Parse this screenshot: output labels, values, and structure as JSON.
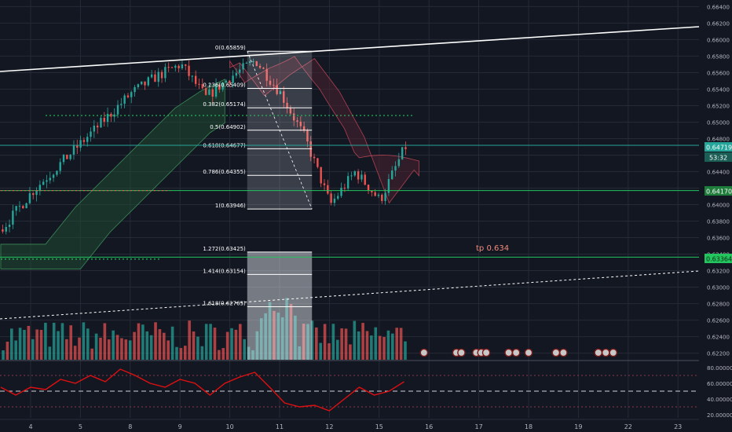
{
  "colors": {
    "background": "#131722",
    "grid": "#242a36",
    "axis_text": "#b2b5be",
    "up": "#26a69a",
    "down": "#ef5350",
    "trendline": "#ffffff",
    "green_line": "#22c55e",
    "fib_box": "#f0f3fa",
    "cloud_up": "#1f4a33",
    "cloud_down": "#4a2030",
    "rsi_line": "#e01010"
  },
  "price_tags": {
    "current": "0.64719",
    "countdown": "53:32",
    "support": "0.64170",
    "target": "0.63364"
  },
  "annotation": {
    "tp_label": "tp 0.634"
  },
  "chart_data": [
    {
      "type": "line",
      "panel": "price",
      "y_ticks": [
        "0.66400",
        "0.66200",
        "0.66000",
        "0.65800",
        "0.65600",
        "0.65400",
        "0.65200",
        "0.65000",
        "0.64800",
        "0.64600",
        "0.64400",
        "0.64200",
        "0.64000",
        "0.63800",
        "0.63600",
        "0.63400",
        "0.63200",
        "0.63000",
        "0.62800",
        "0.62600",
        "0.62400",
        "0.62200"
      ],
      "ylim": [
        0.6212,
        0.6648
      ],
      "x_ticks": [
        "4",
        "5",
        "8",
        "9",
        "10",
        "11",
        "12",
        "15",
        "16",
        "17",
        "18",
        "19",
        "22",
        "23"
      ],
      "x_tick_days": [
        0,
        1,
        2,
        3,
        4,
        5,
        6,
        7,
        8,
        9,
        10,
        11,
        12,
        13
      ],
      "xlim": [
        -0.6,
        13.6
      ],
      "series": [
        {
          "values_x": [
            -0.6,
            0.0,
            0.5,
            1.0,
            1.5,
            2.0,
            2.5,
            3.0,
            3.5,
            4.0,
            4.5,
            5.0,
            5.5,
            6.0,
            6.5,
            7.0,
            7.5
          ],
          "values_y": [
            0.637,
            0.6415,
            0.6445,
            0.6475,
            0.6505,
            0.6535,
            0.6555,
            0.657,
            0.653,
            0.6555,
            0.6575,
            0.6535,
            0.648,
            0.64,
            0.644,
            0.6405,
            0.647
          ]
        }
      ],
      "fib_levels": [
        {
          "label": "0(0.65859)",
          "value": 0.65859
        },
        {
          "label": "0.236(0.65409)",
          "value": 0.65409
        },
        {
          "label": "0.382(0.65174)",
          "value": 0.65174
        },
        {
          "label": "0.5(0.64902)",
          "value": 0.64902
        },
        {
          "label": "0.618(0.64677)",
          "value": 0.64677
        },
        {
          "label": "0.786(0.64355)",
          "value": 0.64355
        },
        {
          "label": "1(0.63946)",
          "value": 0.63946
        },
        {
          "label": "1.272(0.63425)",
          "value": 0.63425
        },
        {
          "label": "1.414(0.63154)",
          "value": 0.63154
        },
        {
          "label": "1.618(0.62763)",
          "value": 0.62763
        }
      ],
      "fib_range_days": [
        4.35,
        5.65
      ],
      "horizontal_lines": [
        0.64719,
        0.6417,
        0.63364
      ],
      "grid": true
    },
    {
      "type": "line",
      "panel": "oscillator",
      "y_ticks": [
        "80.000000",
        "60.000000",
        "40.000000",
        "20.000000"
      ],
      "y_tick_values": [
        80,
        60,
        40,
        20
      ],
      "ylim": [
        16,
        86
      ],
      "levels": [
        70,
        50,
        30
      ],
      "series": [
        {
          "values_x": [
            -0.6,
            -0.3,
            0.0,
            0.3,
            0.6,
            0.9,
            1.2,
            1.5,
            1.8,
            2.1,
            2.4,
            2.7,
            3.0,
            3.3,
            3.6,
            3.9,
            4.2,
            4.5,
            4.8,
            5.1,
            5.4,
            5.7,
            6.0,
            6.3,
            6.6,
            6.9,
            7.2,
            7.5
          ],
          "values_y": [
            55,
            45,
            55,
            52,
            65,
            60,
            70,
            62,
            78,
            70,
            60,
            55,
            65,
            60,
            45,
            60,
            68,
            74,
            55,
            35,
            30,
            32,
            25,
            40,
            55,
            45,
            50,
            62
          ]
        }
      ],
      "grid": true
    }
  ]
}
